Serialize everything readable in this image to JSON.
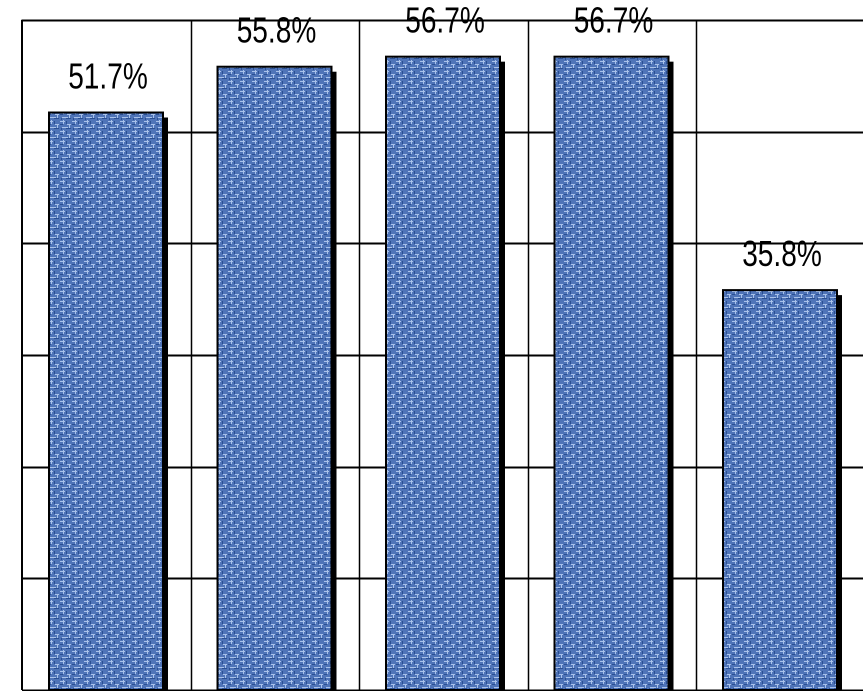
{
  "chart_data": {
    "type": "bar",
    "categories": [
      "",
      "",
      "",
      "",
      ""
    ],
    "values": [
      51.7,
      55.8,
      56.7,
      56.7,
      35.8
    ],
    "value_labels": [
      "51.7%",
      "55.8%",
      "56.7%",
      "56.7%",
      "35.8%"
    ],
    "title": "",
    "xlabel": "",
    "ylabel": "",
    "ylim": [
      0,
      60
    ],
    "grid": true,
    "legend": "none",
    "colors": {
      "bar": "#4f74b8",
      "bar_light": "#a9c2ea",
      "bar_dark": "#2a4f92",
      "shadow": "#000000",
      "gridline": "#000000",
      "label": "#000000"
    }
  }
}
